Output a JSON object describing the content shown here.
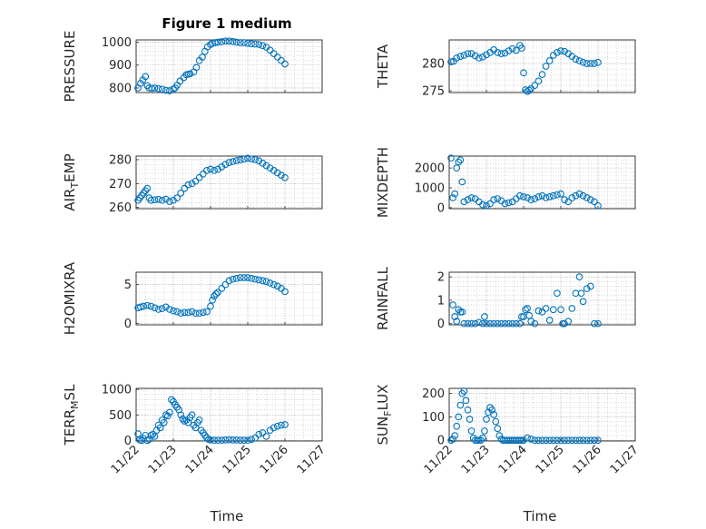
{
  "figure": {
    "title": "Figure 1 medium"
  },
  "colors": {
    "marker": "#0072BD",
    "axis": "#262626",
    "grid": "#999999"
  },
  "chart_data": [
    {
      "type": "scatter",
      "ylabel": "PRESSURE",
      "ylabel_sub": "",
      "ylabel_tail": "",
      "ylim": [
        780,
        1010
      ],
      "yticks": [
        800,
        900,
        1000
      ],
      "xlim": [
        0,
        5
      ],
      "x": [
        0.05,
        0.12,
        0.18,
        0.25,
        0.3,
        0.35,
        0.42,
        0.5,
        0.6,
        0.7,
        0.8,
        0.9,
        1.0,
        1.05,
        1.1,
        1.18,
        1.28,
        1.35,
        1.4,
        1.45,
        1.55,
        1.62,
        1.7,
        1.78,
        1.85,
        1.92,
        2.0,
        2.05,
        2.12,
        2.2,
        2.3,
        2.4,
        2.5,
        2.6,
        2.7,
        2.8,
        2.9,
        3.0,
        3.1,
        3.2,
        3.3,
        3.4,
        3.5,
        3.6,
        3.7,
        3.8,
        3.9,
        4.0
      ],
      "y": [
        800,
        820,
        835,
        850,
        810,
        800,
        798,
        800,
        797,
        795,
        790,
        788,
        795,
        800,
        812,
        830,
        845,
        858,
        860,
        862,
        870,
        890,
        920,
        935,
        960,
        980,
        990,
        995,
        998,
        1000,
        1002,
        1005,
        1005,
        1003,
        1000,
        998,
        998,
        995,
        993,
        992,
        990,
        985,
        978,
        965,
        950,
        935,
        920,
        905
      ]
    },
    {
      "type": "scatter",
      "ylabel": "THETA",
      "ylabel_sub": "",
      "ylabel_tail": "",
      "ylim": [
        274.7,
        284.3
      ],
      "yticks": [
        275,
        280
      ],
      "xlim": [
        0,
        5
      ],
      "x": [
        0.05,
        0.12,
        0.2,
        0.3,
        0.4,
        0.5,
        0.6,
        0.7,
        0.8,
        0.9,
        1.0,
        1.1,
        1.2,
        1.3,
        1.4,
        1.5,
        1.6,
        1.7,
        1.8,
        1.9,
        1.95,
        2.0,
        2.05,
        2.1,
        2.15,
        2.2,
        2.3,
        2.4,
        2.5,
        2.6,
        2.7,
        2.8,
        2.9,
        3.0,
        3.1,
        3.2,
        3.3,
        3.4,
        3.5,
        3.6,
        3.7,
        3.8,
        3.9,
        4.0
      ],
      "y": [
        280.3,
        280.4,
        281,
        281.3,
        281.5,
        281.8,
        281.8,
        281.4,
        281,
        281.2,
        281.6,
        282,
        282.5,
        282,
        281.8,
        281.9,
        282.3,
        282.7,
        282.4,
        283.3,
        282.8,
        278.3,
        275.2,
        274.9,
        275.1,
        275.4,
        276,
        276.8,
        278,
        279.5,
        280.5,
        281.5,
        282,
        282.3,
        282.2,
        281.8,
        281.3,
        280.8,
        280.5,
        280.2,
        280,
        280,
        280,
        280.2
      ]
    },
    {
      "type": "scatter",
      "ylabel": "AIR",
      "ylabel_sub": "T",
      "ylabel_tail": "EMP",
      "ylim": [
        259.5,
        281.5
      ],
      "yticks": [
        260,
        270,
        280
      ],
      "xlim": [
        0,
        5
      ],
      "x": [
        0.05,
        0.1,
        0.15,
        0.2,
        0.25,
        0.3,
        0.35,
        0.4,
        0.5,
        0.6,
        0.7,
        0.8,
        0.9,
        1.0,
        1.1,
        1.2,
        1.3,
        1.4,
        1.5,
        1.6,
        1.7,
        1.8,
        1.9,
        2.0,
        2.1,
        2.2,
        2.3,
        2.4,
        2.5,
        2.6,
        2.7,
        2.8,
        2.9,
        3.0,
        3.1,
        3.2,
        3.3,
        3.4,
        3.5,
        3.6,
        3.7,
        3.8,
        3.9,
        4.0
      ],
      "y": [
        263,
        264,
        265,
        266,
        267,
        268,
        264,
        263,
        263.2,
        263.4,
        263,
        263.5,
        262.5,
        263,
        264,
        266,
        268,
        269.5,
        270,
        271,
        272.5,
        274,
        275.5,
        276,
        275.5,
        276,
        277,
        278,
        278.8,
        279.2,
        279.6,
        279.9,
        280.2,
        280.6,
        280.3,
        280,
        279.5,
        278.5,
        277.5,
        276.5,
        275.5,
        274.5,
        273.5,
        272.5
      ]
    },
    {
      "type": "scatter",
      "ylabel": "MIXDEPTH",
      "ylabel_sub": "",
      "ylabel_tail": "",
      "ylim": [
        -50,
        2600
      ],
      "yticks": [
        0,
        1000,
        2000
      ],
      "xlim": [
        0,
        5
      ],
      "x": [
        0.05,
        0.1,
        0.15,
        0.2,
        0.25,
        0.3,
        0.35,
        0.4,
        0.5,
        0.6,
        0.7,
        0.8,
        0.9,
        1.0,
        1.1,
        1.2,
        1.3,
        1.4,
        1.5,
        1.6,
        1.7,
        1.8,
        1.9,
        2.0,
        2.1,
        2.2,
        2.3,
        2.4,
        2.5,
        2.6,
        2.7,
        2.8,
        2.9,
        3.0,
        3.1,
        3.2,
        3.3,
        3.4,
        3.5,
        3.6,
        3.7,
        3.8,
        3.9,
        4.0
      ],
      "y": [
        2500,
        500,
        700,
        2000,
        2300,
        2400,
        1300,
        300,
        400,
        500,
        450,
        300,
        150,
        100,
        200,
        400,
        450,
        350,
        200,
        250,
        300,
        450,
        600,
        550,
        500,
        400,
        450,
        550,
        600,
        500,
        550,
        600,
        650,
        700,
        400,
        300,
        500,
        600,
        700,
        600,
        500,
        400,
        300,
        100
      ]
    },
    {
      "type": "scatter",
      "ylabel": "H2OMIXRA",
      "ylabel_sub": "",
      "ylabel_tail": "",
      "ylim": [
        -0.2,
        6.6
      ],
      "yticks": [
        0,
        5
      ],
      "xlim": [
        0,
        5
      ],
      "x": [
        0.05,
        0.12,
        0.2,
        0.3,
        0.4,
        0.5,
        0.6,
        0.7,
        0.8,
        0.9,
        1.0,
        1.1,
        1.2,
        1.3,
        1.4,
        1.5,
        1.6,
        1.7,
        1.8,
        1.9,
        2.0,
        2.05,
        2.1,
        2.15,
        2.2,
        2.3,
        2.4,
        2.5,
        2.6,
        2.7,
        2.8,
        2.9,
        3.0,
        3.1,
        3.2,
        3.3,
        3.4,
        3.5,
        3.6,
        3.7,
        3.8,
        3.9,
        4.0
      ],
      "y": [
        2,
        2.1,
        2.2,
        2.3,
        2.2,
        2,
        1.8,
        1.9,
        2.1,
        1.8,
        1.6,
        1.5,
        1.3,
        1.4,
        1.4,
        1.5,
        1.3,
        1.3,
        1.4,
        1.5,
        2.2,
        3,
        3.5,
        3.8,
        4,
        4.5,
        5,
        5.5,
        5.7,
        5.8,
        5.9,
        5.9,
        5.9,
        5.8,
        5.7,
        5.6,
        5.5,
        5.4,
        5.2,
        5,
        4.8,
        4.5,
        4.1
      ]
    },
    {
      "type": "scatter",
      "ylabel": "RAINFALL",
      "ylabel_sub": "",
      "ylabel_tail": "",
      "ylim": [
        -0.05,
        2.2
      ],
      "yticks": [
        0,
        1,
        2
      ],
      "xlim": [
        0,
        5
      ],
      "x": [
        0.1,
        0.15,
        0.2,
        0.25,
        0.3,
        0.35,
        0.4,
        0.5,
        0.6,
        0.7,
        0.8,
        0.9,
        0.95,
        1.0,
        1.1,
        1.2,
        1.3,
        1.4,
        1.5,
        1.6,
        1.7,
        1.8,
        1.9,
        1.95,
        2.0,
        2.05,
        2.1,
        2.15,
        2.2,
        2.3,
        2.4,
        2.5,
        2.6,
        2.7,
        2.8,
        2.9,
        3.0,
        3.05,
        3.1,
        3.2,
        3.3,
        3.4,
        3.5,
        3.55,
        3.6,
        3.7,
        3.8,
        3.9,
        4.0
      ],
      "y": [
        0.8,
        0.3,
        0.1,
        0.6,
        0.5,
        0.5,
        0,
        0,
        0,
        0,
        0.05,
        0,
        0.3,
        0,
        0,
        0,
        0,
        0,
        0,
        0,
        0,
        0,
        0,
        0.3,
        0.3,
        0.6,
        0.65,
        0.35,
        0.1,
        0,
        0.55,
        0.5,
        0.65,
        0.15,
        0.6,
        1.3,
        0.6,
        0,
        0,
        0.1,
        0.65,
        1.3,
        2,
        1.3,
        0.95,
        1.5,
        1.6,
        0,
        0
      ]
    },
    {
      "type": "scatter",
      "ylabel": "TERR",
      "ylabel_sub": "M",
      "ylabel_tail": "SL",
      "ylim": [
        -10,
        1020
      ],
      "yticks": [
        0,
        500,
        1000
      ],
      "xlim": [
        0,
        5
      ],
      "x": [
        0.05,
        0.1,
        0.15,
        0.2,
        0.25,
        0.3,
        0.35,
        0.4,
        0.45,
        0.5,
        0.55,
        0.6,
        0.65,
        0.7,
        0.75,
        0.8,
        0.85,
        0.9,
        0.95,
        1.0,
        1.05,
        1.1,
        1.15,
        1.2,
        1.25,
        1.3,
        1.35,
        1.4,
        1.45,
        1.5,
        1.55,
        1.6,
        1.65,
        1.7,
        1.75,
        1.8,
        1.85,
        1.9,
        1.95,
        2.0,
        2.1,
        2.2,
        2.3,
        2.4,
        2.5,
        2.6,
        2.7,
        2.8,
        2.9,
        3.0,
        3.1,
        3.2,
        3.3,
        3.4,
        3.5,
        3.6,
        3.7,
        3.8,
        3.9,
        4.0
      ],
      "y": [
        130,
        10,
        0,
        40,
        100,
        0,
        20,
        100,
        120,
        80,
        200,
        300,
        250,
        400,
        350,
        500,
        480,
        550,
        800,
        760,
        700,
        650,
        600,
        500,
        420,
        380,
        400,
        350,
        450,
        500,
        300,
        250,
        350,
        400,
        200,
        150,
        100,
        50,
        20,
        10,
        5,
        5,
        5,
        10,
        15,
        10,
        10,
        5,
        5,
        5,
        20,
        50,
        120,
        150,
        80,
        200,
        250,
        280,
        300,
        310
      ]
    },
    {
      "type": "scatter",
      "ylabel": "SUN",
      "ylabel_sub": "F",
      "ylabel_tail": "LUX",
      "ylim": [
        -3,
        222
      ],
      "yticks": [
        0,
        100,
        200
      ],
      "xlim": [
        0,
        5
      ],
      "x": [
        0.05,
        0.1,
        0.15,
        0.2,
        0.25,
        0.3,
        0.35,
        0.4,
        0.45,
        0.5,
        0.55,
        0.6,
        0.65,
        0.7,
        0.75,
        0.8,
        0.85,
        0.9,
        0.95,
        1.0,
        1.05,
        1.1,
        1.15,
        1.2,
        1.25,
        1.3,
        1.35,
        1.4,
        1.45,
        1.5,
        1.55,
        1.6,
        1.65,
        1.7,
        1.75,
        1.8,
        1.85,
        1.9,
        1.95,
        2.0,
        2.1,
        2.2,
        2.3,
        2.4,
        2.5,
        2.6,
        2.7,
        2.8,
        2.9,
        3.0,
        3.1,
        3.2,
        3.3,
        3.4,
        3.5,
        3.6,
        3.7,
        3.8,
        3.9,
        4.0
      ],
      "y": [
        0,
        5,
        20,
        60,
        100,
        150,
        200,
        210,
        170,
        130,
        90,
        40,
        10,
        0,
        0,
        0,
        0,
        10,
        40,
        90,
        120,
        140,
        130,
        110,
        80,
        50,
        20,
        5,
        0,
        0,
        0,
        0,
        0,
        0,
        0,
        0,
        0,
        0,
        0,
        0,
        10,
        5,
        0,
        0,
        0,
        0,
        0,
        0,
        0,
        0,
        0,
        0,
        0,
        0,
        0,
        0,
        0,
        0,
        0,
        0
      ]
    }
  ],
  "x_axis": {
    "ticks": [
      "11/22",
      "11/23",
      "11/24",
      "11/25",
      "11/26",
      "11/27"
    ],
    "label": "Time"
  }
}
